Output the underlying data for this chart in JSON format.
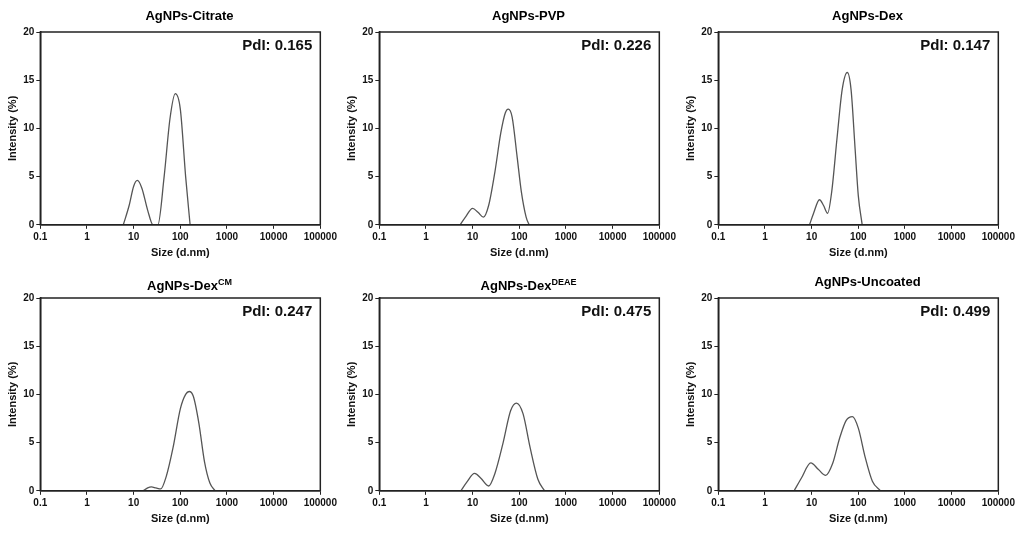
{
  "chart_data": [
    {
      "type": "line",
      "title": "AgNPs-Citrate",
      "xlabel": "Size (d.nm)",
      "ylabel": "Intensity (%)",
      "log": "x",
      "xlim": [
        0.1,
        100000
      ],
      "xticks": [
        0.1,
        1,
        10,
        100,
        1000,
        10000,
        100000
      ],
      "ylim": [
        0,
        20
      ],
      "yticks": [
        0,
        5,
        10,
        15,
        20
      ],
      "grid": false,
      "legend": false,
      "marker": "none",
      "line_style": "solid",
      "annotations": [
        "PdI: 0.165"
      ],
      "series": [
        {
          "color": "#555555",
          "x": [
            6,
            8,
            10,
            12,
            15,
            20,
            26,
            33,
            45,
            60,
            78,
            100,
            130,
            162
          ],
          "values": [
            0,
            2.0,
            4.0,
            4.6,
            3.8,
            1.5,
            0,
            0,
            5,
            11,
            13.6,
            12,
            5,
            0
          ]
        }
      ]
    },
    {
      "type": "line",
      "title": "AgNPs-PVP",
      "xlabel": "Size (d.nm)",
      "ylabel": "Intensity (%)",
      "log": "x",
      "xlim": [
        0.1,
        100000
      ],
      "xticks": [
        0.1,
        1,
        10,
        100,
        1000,
        10000,
        100000
      ],
      "ylim": [
        0,
        20
      ],
      "yticks": [
        0,
        5,
        10,
        15,
        20
      ],
      "grid": false,
      "legend": false,
      "marker": "none",
      "line_style": "solid",
      "annotations": [
        "PdI: 0.226"
      ],
      "series": [
        {
          "color": "#555555",
          "x": [
            5.4,
            7,
            10,
            13,
            17,
            22,
            30,
            40,
            50,
            58,
            70,
            90,
            110,
            140,
            162
          ],
          "values": [
            0,
            0.8,
            1.7,
            1.3,
            0.8,
            2.0,
            5.5,
            9.5,
            11.6,
            12.0,
            11.2,
            7,
            3.5,
            0.8,
            0
          ]
        }
      ]
    },
    {
      "type": "line",
      "title": "AgNPs-Dex",
      "xlabel": "Size (d.nm)",
      "ylabel": "Intensity (%)",
      "log": "x",
      "xlim": [
        0.1,
        100000
      ],
      "xticks": [
        0.1,
        1,
        10,
        100,
        1000,
        10000,
        100000
      ],
      "ylim": [
        0,
        20
      ],
      "yticks": [
        0,
        5,
        10,
        15,
        20
      ],
      "grid": false,
      "legend": false,
      "marker": "none",
      "line_style": "solid",
      "annotations": [
        "PdI: 0.147"
      ],
      "series": [
        {
          "color": "#555555",
          "x": [
            9,
            11,
            14.7,
            18,
            22,
            27,
            35,
            45,
            58,
            70,
            85,
            100,
            121
          ],
          "values": [
            0,
            1.2,
            2.6,
            2.0,
            1.2,
            3.5,
            9,
            14,
            15.8,
            14,
            8,
            3,
            0
          ]
        }
      ]
    },
    {
      "type": "line",
      "title": "AgNPs-Dex$^{CM}$",
      "xlabel": "Size (d.nm)",
      "ylabel": "Intensity (%)",
      "log": "x",
      "xlim": [
        0.1,
        100000
      ],
      "xticks": [
        0.1,
        1,
        10,
        100,
        1000,
        10000,
        100000
      ],
      "ylim": [
        0,
        20
      ],
      "yticks": [
        0,
        5,
        10,
        15,
        20
      ],
      "grid": false,
      "legend": false,
      "marker": "none",
      "line_style": "solid",
      "annotations": [
        "PdI: 0.247"
      ],
      "series": [
        {
          "color": "#555555",
          "x": [
            16,
            20,
            24,
            30,
            38,
            50,
            70,
            100,
            130,
            155,
            190,
            250,
            330,
            430,
            560
          ],
          "values": [
            0,
            0.3,
            0.4,
            0.3,
            0.2,
            1.5,
            4.5,
            8.5,
            10.0,
            10.3,
            9.8,
            7,
            3,
            0.8,
            0
          ]
        }
      ]
    },
    {
      "type": "line",
      "title": "AgNPs-Dex$^{DEAE}$",
      "xlabel": "Size (d.nm)",
      "ylabel": "Intensity (%)",
      "log": "x",
      "xlim": [
        0.1,
        100000
      ],
      "xticks": [
        0.1,
        1,
        10,
        100,
        1000,
        10000,
        100000
      ],
      "ylim": [
        0,
        20
      ],
      "yticks": [
        0,
        5,
        10,
        15,
        20
      ],
      "grid": false,
      "legend": false,
      "marker": "none",
      "line_style": "solid",
      "annotations": [
        "PdI: 0.475"
      ],
      "series": [
        {
          "color": "#555555",
          "x": [
            5.6,
            7.5,
            11,
            15,
            22,
            30,
            45,
            65,
            87,
            120,
            170,
            250,
            348
          ],
          "values": [
            0,
            0.9,
            1.8,
            1.3,
            0.5,
            1.8,
            5,
            8.3,
            9.1,
            8,
            4.5,
            1.2,
            0
          ]
        }
      ]
    },
    {
      "type": "line",
      "title": "AgNPs-Uncoated",
      "xlabel": "Size (d.nm)",
      "ylabel": "Intensity (%)",
      "log": "x",
      "xlim": [
        0.1,
        100000
      ],
      "xticks": [
        0.1,
        1,
        10,
        100,
        1000,
        10000,
        100000
      ],
      "ylim": [
        0,
        20
      ],
      "yticks": [
        0,
        5,
        10,
        15,
        20
      ],
      "grid": false,
      "legend": false,
      "marker": "none",
      "line_style": "solid",
      "annotations": [
        "PdI: 0.499"
      ],
      "series": [
        {
          "color": "#555555",
          "x": [
            4.2,
            6,
            9.6,
            14,
            20,
            28,
            40,
            55,
            75,
            100,
            140,
            200,
            300
          ],
          "values": [
            0,
            1.3,
            2.9,
            2.2,
            1.6,
            2.8,
            5.5,
            7.3,
            7.7,
            6.5,
            3.5,
            1,
            0
          ]
        }
      ]
    }
  ]
}
